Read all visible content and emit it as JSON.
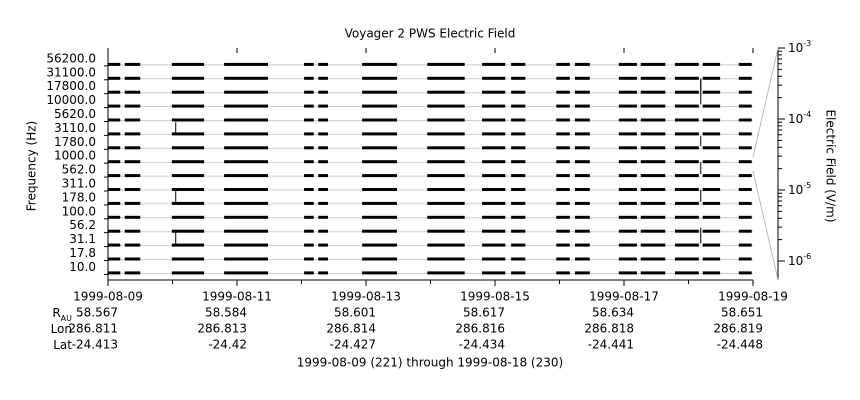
{
  "chart_data": {
    "type": "channel-strips",
    "title": "Voyager 2 PWS Electric Field",
    "ylabel": "Frequency (Hz)",
    "y2label": "Electric Field (V/m)",
    "categories": [
      "56200.0",
      "31100.0",
      "17800.0",
      "10000.0",
      "5620.0",
      "3110.0",
      "1780.0",
      "1000.0",
      "562.0",
      "311.0",
      "178.0",
      "100.0",
      "56.2",
      "31.1",
      "17.8",
      "10.0"
    ],
    "xlim": [
      0,
      10
    ],
    "xticks": [
      {
        "value": 0,
        "label": "1999-08-09"
      },
      {
        "value": 2,
        "label": "1999-08-11"
      },
      {
        "value": 4,
        "label": "1999-08-13"
      },
      {
        "value": 6,
        "label": "1999-08-15"
      },
      {
        "value": 8,
        "label": "1999-08-17"
      },
      {
        "value": 10,
        "label": "1999-08-19"
      }
    ],
    "xminor": [
      1,
      3,
      5,
      7,
      9
    ],
    "coverage": [
      [
        0,
        0.19
      ],
      [
        0.26,
        0.5
      ],
      [
        0.99,
        1.49
      ],
      [
        1.8,
        2.48
      ],
      [
        3.04,
        3.19
      ],
      [
        3.26,
        3.41
      ],
      [
        3.94,
        4.48
      ],
      [
        4.95,
        5.53
      ],
      [
        5.8,
        6.16
      ],
      [
        6.25,
        6.47
      ],
      [
        6.95,
        7.16
      ],
      [
        7.24,
        7.47
      ],
      [
        7.92,
        8.2
      ],
      [
        8.26,
        8.64
      ],
      [
        8.79,
        9.16
      ],
      [
        9.22,
        9.49
      ],
      [
        9.78,
        9.98
      ]
    ],
    "spikes": [
      {
        "x": 1.05,
        "channel": 5,
        "value": 7.5e-07
      },
      {
        "x": 1.05,
        "channel": 10,
        "value": 8e-07
      },
      {
        "x": 1.05,
        "channel": 13,
        "value": 8.5e-07
      },
      {
        "x": 9.19,
        "channel": 2,
        "value": 8e-07
      },
      {
        "x": 9.19,
        "channel": 3,
        "value": 1.2e-06
      },
      {
        "x": 9.19,
        "channel": 6,
        "value": 7.5e-07
      },
      {
        "x": 9.19,
        "channel": 8,
        "value": 8e-07
      },
      {
        "x": 9.19,
        "channel": 10,
        "value": 8e-07
      },
      {
        "x": 9.19,
        "channel": 13,
        "value": 9e-07
      }
    ],
    "y2lim": [
      5.4e-07,
      0.001
    ],
    "y2log": true,
    "y2ticks": [
      {
        "value": 0.001,
        "label": "10",
        "exponent": "-3"
      },
      {
        "value": 0.0001,
        "label": "10",
        "exponent": "-4"
      },
      {
        "value": 1e-05,
        "label": "10",
        "exponent": "-5"
      },
      {
        "value": 1e-06,
        "label": "10",
        "exponent": "-6"
      }
    ],
    "ephemeris": [
      {
        "label": "R",
        "sub": "AU",
        "values": [
          58.567,
          58.584,
          58.601,
          58.617,
          58.634,
          58.651
        ]
      },
      {
        "label": "Lon",
        "values": [
          286.811,
          286.813,
          286.814,
          286.816,
          286.818,
          286.819
        ]
      },
      {
        "label": "Lat",
        "values": [
          -24.413,
          -24.42,
          -24.427,
          -24.434,
          -24.441,
          -24.448
        ]
      }
    ],
    "footer": "1999-08-09 (221) through 1999-08-18 (230)"
  }
}
